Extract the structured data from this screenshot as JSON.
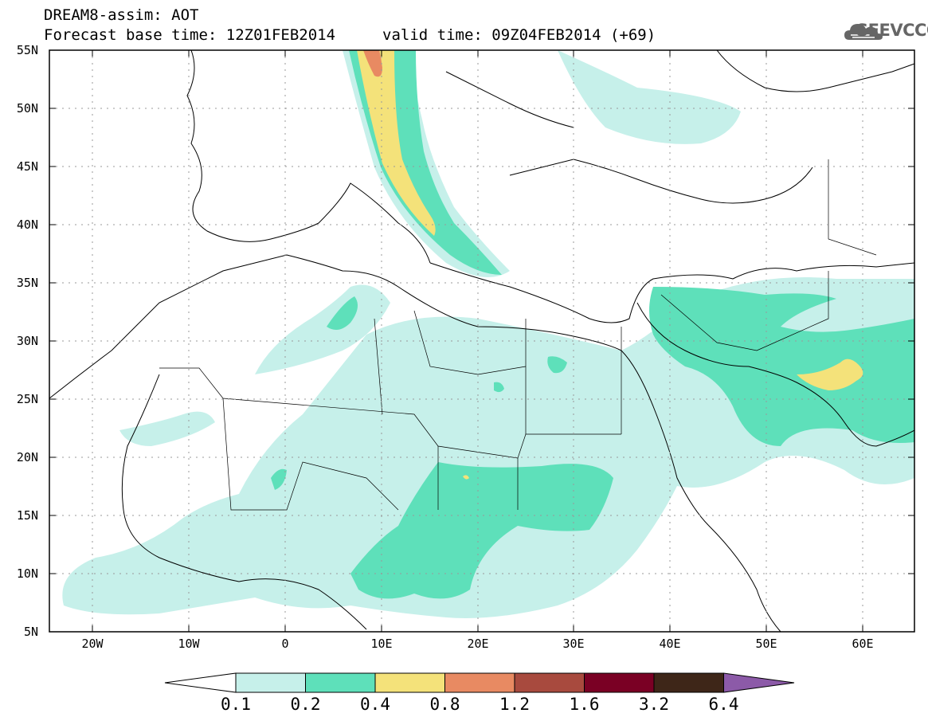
{
  "header": {
    "title_line1": "DREAM8-assim: AOT",
    "title_line2": "Forecast base time: 12Z01FEB2014",
    "valid_time": "valid time: 09Z04FEB2014 (+69)",
    "logo_text": "SEEVCCC"
  },
  "map": {
    "lat_labels": [
      "55N",
      "50N",
      "45N",
      "40N",
      "35N",
      "30N",
      "25N",
      "20N",
      "15N",
      "10N",
      "5N"
    ],
    "lon_labels": [
      "20W",
      "10W",
      "0",
      "10E",
      "20E",
      "30E",
      "40E",
      "50E",
      "60E"
    ],
    "extent": {
      "lon_min": -25,
      "lon_max": 65,
      "lat_min": 5,
      "lat_max": 55
    }
  },
  "colorbar": {
    "labels": [
      "0.1",
      "0.2",
      "0.4",
      "0.8",
      "1.2",
      "1.6",
      "3.2",
      "6.4"
    ],
    "colors": [
      "#ffffff",
      "#c6f0ea",
      "#5ee0ba",
      "#f4e27a",
      "#e88a62",
      "#a84a3e",
      "#7a0024",
      "#3e2618",
      "#8c5aa8"
    ]
  },
  "aot_colors": {
    "light": "#c6f0ea",
    "medium": "#5ee0ba",
    "yellow": "#f4e27a",
    "orange": "#e88a62"
  }
}
